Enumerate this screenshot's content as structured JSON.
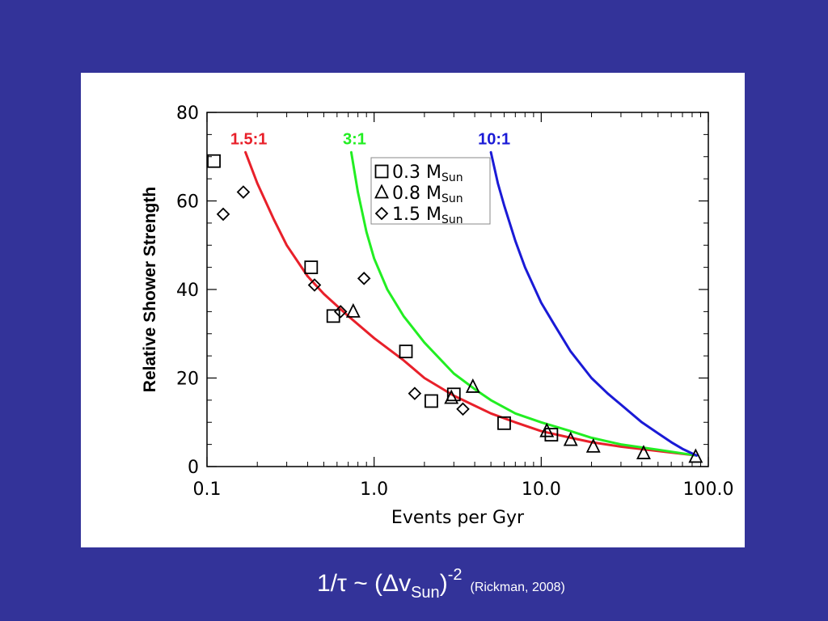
{
  "colors": {
    "background": "#333399",
    "panel": "#ffffff",
    "curve_1_5": "#e8202a",
    "curve_3": "#22ee22",
    "curve_10": "#1a1ad6"
  },
  "formula": {
    "lhs": "1/τ ~ (Δv",
    "sub": "Sun",
    "close": ")",
    "exp": "-2",
    "citation": "(Rickman, 2008)"
  },
  "chart_data": {
    "type": "scatter",
    "xlabel": "Events per Gyr",
    "ylabel": "Relative Shower Strength",
    "xscale": "log",
    "xlim": [
      0.1,
      100
    ],
    "ylim": [
      0,
      80
    ],
    "xticks": [
      0.1,
      1.0,
      10.0,
      100.0
    ],
    "xtick_labels": [
      "0.1",
      "1.0",
      "10.0",
      "100.0"
    ],
    "yticks": [
      0,
      20,
      40,
      60,
      80
    ],
    "ytick_labels": [
      "0",
      "20",
      "40",
      "60",
      "80"
    ],
    "legend": {
      "placement": "top-center",
      "entries": [
        {
          "marker": "square",
          "text": "0.3 M",
          "sub": "Sun"
        },
        {
          "marker": "triangle",
          "text": "0.8 M",
          "sub": "Sun"
        },
        {
          "marker": "diamond",
          "text": "1.5 M",
          "sub": "Sun"
        }
      ]
    },
    "curves": [
      {
        "label": "1.5:1",
        "color": "#e8202a",
        "x": [
          0.17,
          0.2,
          0.25,
          0.3,
          0.4,
          0.5,
          0.7,
          1.0,
          1.5,
          2.0,
          3.0,
          5.0,
          7.0,
          10.0,
          15.0,
          20.0,
          30.0,
          50.0,
          85.0
        ],
        "y": [
          71,
          64,
          56,
          50,
          43,
          39,
          34,
          29,
          24,
          20,
          16,
          12,
          10,
          8,
          6.5,
          5.5,
          4.5,
          3.5,
          2.5
        ]
      },
      {
        "label": "3:1",
        "color": "#22ee22",
        "x": [
          0.73,
          0.8,
          0.9,
          1.0,
          1.2,
          1.5,
          2.0,
          3.0,
          4.0,
          5.0,
          7.0,
          10.0,
          15.0,
          20.0,
          30.0,
          50.0,
          85.0
        ],
        "y": [
          71,
          62,
          53,
          47,
          40,
          34,
          28,
          21,
          17.5,
          15,
          12,
          10,
          8,
          6.5,
          5,
          3.8,
          2.5
        ]
      },
      {
        "label": "10:1",
        "color": "#1a1ad6",
        "x": [
          5.0,
          5.5,
          6.0,
          7.0,
          8.0,
          10.0,
          12.0,
          15.0,
          20.0,
          25.0,
          30.0,
          40.0,
          50.0,
          60.0,
          70.0,
          85.0
        ],
        "y": [
          71,
          64,
          59,
          51,
          45,
          37,
          32,
          26,
          20,
          16.5,
          14,
          10,
          7.5,
          5.5,
          4,
          2.5
        ]
      }
    ],
    "series": [
      {
        "marker": "square",
        "x": [
          0.11,
          0.42,
          0.57,
          1.55,
          2.2,
          3.0,
          6.0,
          11.5
        ],
        "y": [
          69,
          45,
          34,
          26,
          14.8,
          16.3,
          9.8,
          7.2
        ]
      },
      {
        "marker": "triangle",
        "x": [
          0.75,
          2.9,
          3.9,
          10.8,
          15.0,
          20.5,
          41.0,
          84.0
        ],
        "y": [
          35,
          15.5,
          18,
          8,
          6,
          4.5,
          3,
          2.2
        ]
      },
      {
        "marker": "diamond",
        "x": [
          0.125,
          0.165,
          0.44,
          0.63,
          0.87,
          1.75,
          3.4
        ],
        "y": [
          57,
          62,
          41,
          35,
          42.5,
          16.5,
          13
        ]
      }
    ]
  }
}
